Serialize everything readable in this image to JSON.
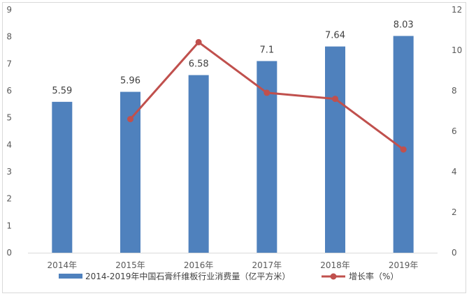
{
  "chart_data": {
    "type": "bar",
    "categories": [
      "2014年",
      "2015年",
      "2016年",
      "2017年",
      "2018年",
      "2019年"
    ],
    "series": [
      {
        "name": "2014-2019年中国石膏纤维板行业消费量（亿平方米）",
        "type": "bar",
        "axis": "left",
        "values": [
          5.59,
          5.96,
          6.58,
          7.1,
          7.64,
          8.03
        ],
        "labels": [
          "5.59",
          "5.96",
          "6.58",
          "7.1",
          "7.64",
          "8.03"
        ],
        "color": "#4f81bd"
      },
      {
        "name": "增长率（%）",
        "type": "line",
        "axis": "right",
        "values": [
          null,
          6.6,
          10.4,
          7.9,
          7.6,
          5.1
        ],
        "color": "#c0504d"
      }
    ],
    "y_left": {
      "ylim": [
        0,
        9
      ],
      "ticks": [
        "0",
        "1",
        "2",
        "3",
        "4",
        "5",
        "6",
        "7",
        "8",
        "9"
      ]
    },
    "y_right": {
      "ylim": [
        0,
        12
      ],
      "ticks": [
        "0",
        "2",
        "4",
        "6",
        "8",
        "10",
        "12"
      ]
    },
    "grid": false,
    "legend": "bottom"
  }
}
